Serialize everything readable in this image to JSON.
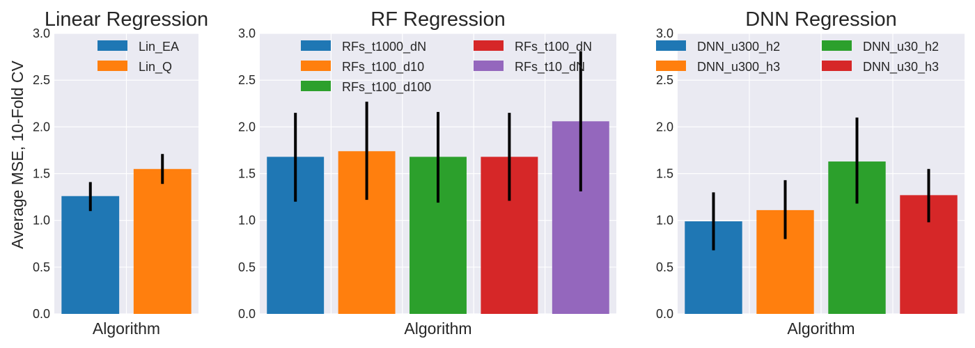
{
  "chart_data": [
    {
      "type": "bar",
      "title": "Linear Regression",
      "xlabel": "Algorithm",
      "ylabel": "Average MSE, 10-Fold CV",
      "ylim": [
        0,
        3.0
      ],
      "yticks": [
        "0.0",
        "0.5",
        "1.0",
        "1.5",
        "2.0",
        "2.5",
        "3.0"
      ],
      "grid": true,
      "legend": {
        "placement": "top-right",
        "columns": 1
      },
      "series": [
        {
          "name": "Lin_EA",
          "value": 1.26,
          "err_low": 1.1,
          "err_high": 1.41,
          "color": "#1f77b4"
        },
        {
          "name": "Lin_Q",
          "value": 1.55,
          "err_low": 1.39,
          "err_high": 1.71,
          "color": "#ff7f0e"
        }
      ]
    },
    {
      "type": "bar",
      "title": "RF Regression",
      "xlabel": "Algorithm",
      "ylabel": "",
      "ylim": [
        0,
        3.0
      ],
      "yticks": [
        "0.0",
        "0.5",
        "1.0",
        "1.5",
        "2.0",
        "2.5",
        "3.0"
      ],
      "grid": true,
      "legend": {
        "placement": "top",
        "columns": 2
      },
      "series": [
        {
          "name": "RFs_t1000_dN",
          "value": 1.68,
          "err_low": 1.2,
          "err_high": 2.15,
          "color": "#1f77b4"
        },
        {
          "name": "RFs_t100_d10",
          "value": 1.74,
          "err_low": 1.22,
          "err_high": 2.27,
          "color": "#ff7f0e"
        },
        {
          "name": "RFs_t100_d100",
          "value": 1.68,
          "err_low": 1.19,
          "err_high": 2.16,
          "color": "#2ca02c"
        },
        {
          "name": "RFs_t100_dN",
          "value": 1.68,
          "err_low": 1.21,
          "err_high": 2.15,
          "color": "#d62728"
        },
        {
          "name": "RFs_t10_dN",
          "value": 2.06,
          "err_low": 1.31,
          "err_high": 2.81,
          "color": "#9467bd"
        }
      ]
    },
    {
      "type": "bar",
      "title": "DNN Regression",
      "xlabel": "Algorithm",
      "ylabel": "",
      "ylim": [
        0,
        3.0
      ],
      "yticks": [
        "0.0",
        "0.5",
        "1.0",
        "1.5",
        "2.0",
        "2.5",
        "3.0"
      ],
      "grid": true,
      "legend": {
        "placement": "top",
        "columns": 2
      },
      "series": [
        {
          "name": "DNN_u300_h2",
          "value": 0.99,
          "err_low": 0.68,
          "err_high": 1.3,
          "color": "#1f77b4"
        },
        {
          "name": "DNN_u300_h3",
          "value": 1.11,
          "err_low": 0.8,
          "err_high": 1.43,
          "color": "#ff7f0e"
        },
        {
          "name": "DNN_u30_h2",
          "value": 1.63,
          "err_low": 1.18,
          "err_high": 2.1,
          "color": "#2ca02c"
        },
        {
          "name": "DNN_u30_h3",
          "value": 1.27,
          "err_low": 0.98,
          "err_high": 1.55,
          "color": "#d62728"
        }
      ]
    }
  ]
}
